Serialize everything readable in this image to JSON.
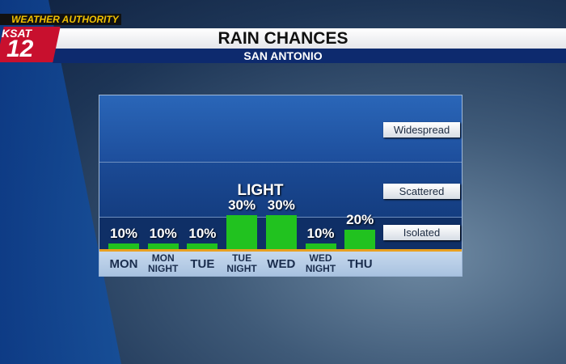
{
  "brand": {
    "tagline": "WEATHER AUTHORITY",
    "station": "KSAT",
    "channel": "12"
  },
  "chart_data": {
    "type": "bar",
    "title": "RAIN CHANCES",
    "subtitle": "SAN ANTONIO",
    "categories": [
      "MON",
      "MON NIGHT",
      "TUE",
      "TUE NIGHT",
      "WED",
      "WED NIGHT",
      "THU"
    ],
    "values": [
      10,
      10,
      10,
      30,
      30,
      10,
      20
    ],
    "value_labels": [
      "10%",
      "10%",
      "10%",
      "30%",
      "30%",
      "10%",
      "20%"
    ],
    "color": "#21c21f",
    "ylim": [
      6,
      115
    ],
    "bands": [
      "Widespread",
      "Scattered",
      "Isolated"
    ],
    "annotations": [
      {
        "text": "LIGHT"
      }
    ]
  }
}
